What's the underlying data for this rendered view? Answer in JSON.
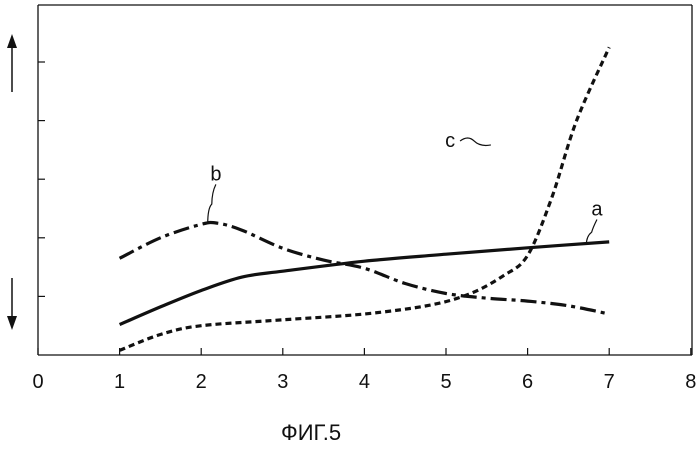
{
  "figure_caption": "ФИГ.5",
  "chart_data": {
    "type": "line",
    "title": "",
    "xlabel": "",
    "ylabel": "",
    "xlim": [
      0,
      8
    ],
    "ylim": [
      0,
      5
    ],
    "x_ticks": [
      "0",
      "1",
      "2",
      "3",
      "4",
      "5",
      "6",
      "7",
      "8"
    ],
    "y_ticks": [
      1,
      2,
      3,
      4,
      5
    ],
    "y_tick_labels_shown": false,
    "y_axis_arrows": [
      "up",
      "down"
    ],
    "grid": false,
    "legend": "none",
    "series": [
      {
        "name": "a",
        "style": "solid",
        "x": [
          1,
          1.5,
          2,
          2.5,
          3,
          4,
          5,
          6,
          7
        ],
        "y": [
          0.52,
          0.82,
          1.1,
          1.33,
          1.43,
          1.6,
          1.72,
          1.83,
          1.93
        ]
      },
      {
        "name": "b",
        "style": "dash-dot",
        "x": [
          1,
          1.5,
          2,
          2.2,
          2.5,
          3,
          3.5,
          4,
          4.5,
          5,
          5.5,
          6,
          6.5,
          7
        ],
        "y": [
          1.65,
          2.0,
          2.23,
          2.25,
          2.13,
          1.82,
          1.62,
          1.48,
          1.22,
          1.05,
          0.97,
          0.92,
          0.84,
          0.7
        ]
      },
      {
        "name": "c",
        "style": "dashed",
        "x": [
          1,
          1.5,
          2,
          3,
          4,
          4.8,
          5.3,
          5.7,
          6,
          6.3,
          6.6,
          7
        ],
        "y": [
          0.08,
          0.35,
          0.5,
          0.6,
          0.7,
          0.85,
          1.05,
          1.35,
          1.7,
          2.7,
          4.0,
          5.25
        ]
      }
    ],
    "annotations": [
      {
        "text": "a",
        "series": "a",
        "x": 6.85,
        "y": 2.38
      },
      {
        "text": "b",
        "series": "b",
        "x": 2.18,
        "y": 2.98
      },
      {
        "text": "c",
        "series": "c",
        "x": 5.05,
        "y": 3.55
      }
    ]
  }
}
